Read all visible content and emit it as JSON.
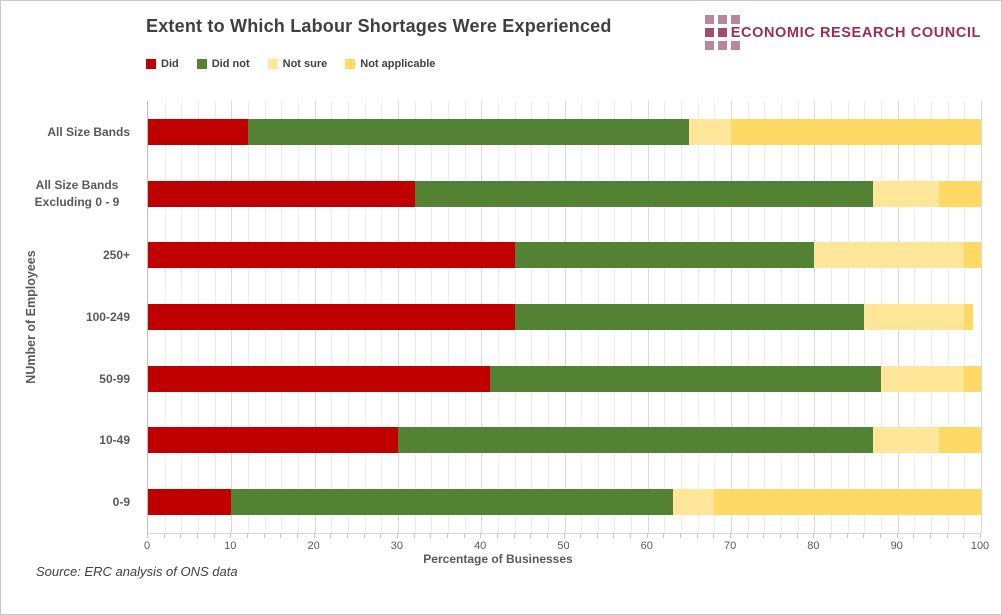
{
  "header": {
    "logo": {
      "text": "ECONOMIC RESEARCH COUNCIL",
      "text_color": "#9b2d56",
      "square_rows": [
        3,
        2,
        3
      ],
      "square_row_colors": [
        "#b8889c",
        "#a34c6b",
        "#b8889c"
      ]
    }
  },
  "footer": {
    "source": "Source: ERC analysis of ONS data"
  },
  "chart_data": {
    "type": "bar",
    "orientation": "horizontal",
    "stacked": true,
    "title": "Extent to Which Labour Shortages Were Experienced",
    "xlabel": "Percentage of Businesses",
    "ylabel": "NUmber of Employees",
    "xlim": [
      0,
      100
    ],
    "xticks": [
      0,
      10,
      20,
      30,
      40,
      50,
      60,
      70,
      80,
      90,
      100
    ],
    "grid": {
      "minor_step": 2,
      "major_step": 10
    },
    "legend_position": "top",
    "categories": [
      "All Size Bands",
      "All Size Bands Excluding 0 - 9",
      "250+",
      "100-249",
      "50-99",
      "10-49",
      "0-9"
    ],
    "series": [
      {
        "name": "Did",
        "color": "#c00000",
        "values": [
          12,
          32,
          44,
          44,
          41,
          30,
          10
        ]
      },
      {
        "name": "Did not",
        "color": "#548235",
        "values": [
          53,
          55,
          36,
          42,
          47,
          57,
          53
        ]
      },
      {
        "name": "Not sure",
        "color": "#ffe699",
        "values": [
          5,
          8,
          18,
          12,
          10,
          8,
          5
        ]
      },
      {
        "name": "Not applicable",
        "color": "#ffd966",
        "values": [
          30,
          5,
          2,
          1,
          2,
          5,
          32
        ]
      }
    ]
  }
}
